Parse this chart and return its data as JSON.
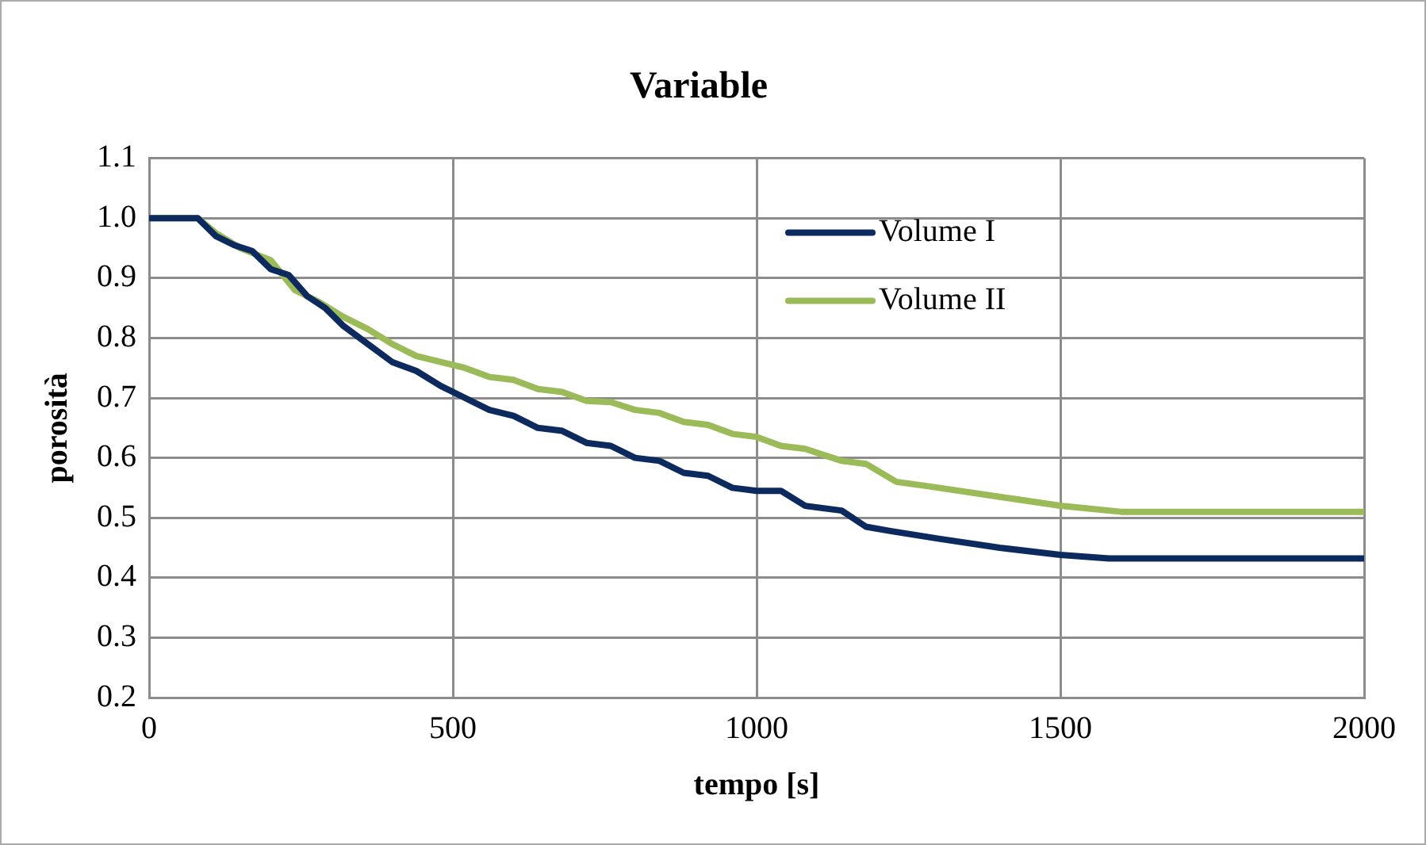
{
  "chart_data": {
    "type": "line",
    "title": "Variable",
    "xlabel": "tempo [s]",
    "ylabel": "porosità",
    "xlim": [
      0,
      2000
    ],
    "xticks": [
      0,
      500,
      1000,
      1500,
      2000
    ],
    "ylim": [
      0.2,
      1.1
    ],
    "yticks": [
      {
        "value": 0.2,
        "label": "0.2"
      },
      {
        "value": 0.3,
        "label": "0.3"
      },
      {
        "value": 0.4,
        "label": "0.4"
      },
      {
        "value": 0.5,
        "label": "0.5"
      },
      {
        "value": 0.6,
        "label": "0.6"
      },
      {
        "value": 0.7,
        "label": "0.7"
      },
      {
        "value": 0.8,
        "label": "0.8"
      },
      {
        "value": 0.9,
        "label": "0.9"
      },
      {
        "value": 1.0,
        "label": "1.0"
      },
      {
        "value": 1.1,
        "label": "1.1"
      }
    ],
    "grid": true,
    "legend": "top right",
    "marker": "none",
    "line_style": "solid",
    "series": [
      {
        "name": "Volume I",
        "color": "#0d2a5e",
        "x": [
          0,
          80,
          110,
          140,
          170,
          200,
          230,
          260,
          290,
          320,
          360,
          400,
          440,
          480,
          520,
          560,
          600,
          640,
          680,
          720,
          760,
          800,
          840,
          880,
          920,
          960,
          1000,
          1040,
          1080,
          1140,
          1180,
          1220,
          1300,
          1400,
          1500,
          1580,
          2000
        ],
        "values": [
          1.0,
          1.0,
          0.97,
          0.955,
          0.945,
          0.915,
          0.905,
          0.87,
          0.85,
          0.82,
          0.79,
          0.76,
          0.745,
          0.72,
          0.7,
          0.68,
          0.67,
          0.65,
          0.645,
          0.625,
          0.62,
          0.6,
          0.595,
          0.575,
          0.57,
          0.55,
          0.545,
          0.545,
          0.52,
          0.512,
          0.485,
          0.478,
          0.465,
          0.45,
          0.438,
          0.432,
          0.432
        ]
      },
      {
        "name": "Volume II",
        "color": "#9bbb59",
        "x": [
          0,
          80,
          110,
          150,
          200,
          240,
          280,
          320,
          360,
          400,
          440,
          480,
          520,
          560,
          600,
          640,
          680,
          720,
          760,
          800,
          840,
          880,
          920,
          960,
          1000,
          1040,
          1080,
          1140,
          1180,
          1230,
          1280,
          1400,
          1500,
          1600,
          2000
        ],
        "values": [
          1.0,
          1.0,
          0.975,
          0.95,
          0.93,
          0.88,
          0.86,
          0.835,
          0.815,
          0.79,
          0.77,
          0.76,
          0.75,
          0.735,
          0.73,
          0.715,
          0.71,
          0.695,
          0.693,
          0.68,
          0.675,
          0.66,
          0.655,
          0.64,
          0.635,
          0.62,
          0.615,
          0.595,
          0.59,
          0.56,
          0.553,
          0.535,
          0.52,
          0.51,
          0.51
        ]
      }
    ]
  }
}
